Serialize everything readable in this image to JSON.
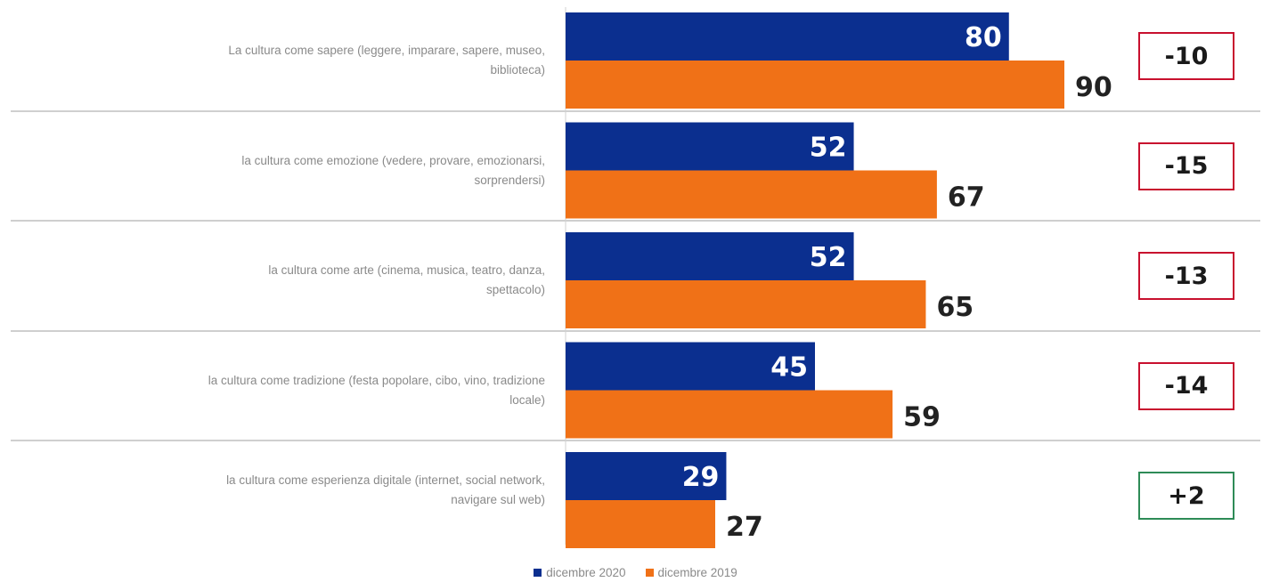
{
  "chart_data": {
    "type": "bar",
    "orientation": "horizontal",
    "categories": [
      "La cultura come sapere (leggere, imparare, sapere, museo, biblioteca)",
      "la cultura come emozione (vedere, provare, emozionarsi, sorprendersi)",
      "la cultura come arte (cinema, musica, teatro, danza, spettacolo)",
      "la cultura come tradizione (festa popolare, cibo, vino, tradizione locale)",
      "la cultura come esperienza digitale (internet, social network, navigare sul web)"
    ],
    "series": [
      {
        "name": "dicembre 2020",
        "values": [
          80,
          52,
          52,
          45,
          29
        ],
        "color": "#0b2f8f"
      },
      {
        "name": "dicembre 2019",
        "values": [
          90,
          67,
          65,
          59,
          27
        ],
        "color": "#f07117"
      }
    ],
    "differences": [
      "-10",
      "-15",
      "-13",
      "-14",
      "+2"
    ],
    "legend_position": "bottom",
    "grid": false
  },
  "colors": {
    "series_2020": "#0b2f8f",
    "series_2019": "#f07117",
    "negative_box": "#c8102e",
    "positive_box": "#2e8b57",
    "separator": "#bfbfbf"
  }
}
